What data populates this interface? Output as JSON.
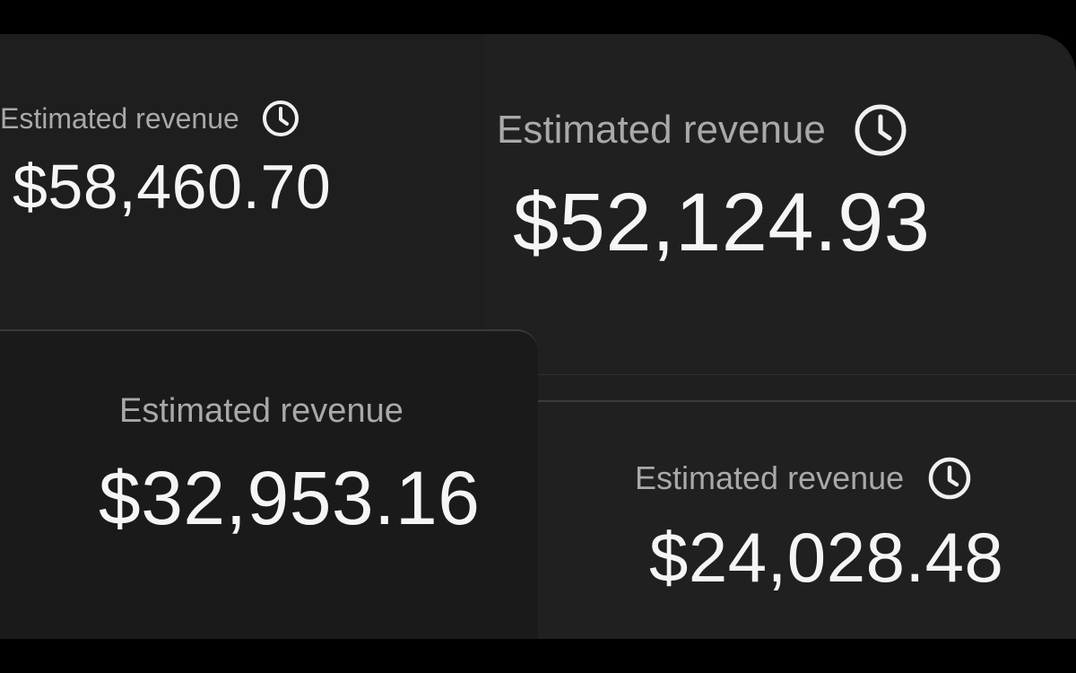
{
  "cards": [
    {
      "label": "Estimated revenue",
      "amount": "$58,460.70",
      "icon": "clock-icon"
    },
    {
      "label": "Estimated revenue",
      "amount": "$52,124.93",
      "icon": "clock-icon"
    },
    {
      "label": "Estimated revenue",
      "amount": "$32,953.16"
    },
    {
      "label": "Estimated revenue",
      "amount": "$24,028.48",
      "icon": "clock-icon"
    }
  ],
  "colors": {
    "background": "#000000",
    "card": "#1f1f1f",
    "label": "#a9a9a9",
    "amount": "#f5f5f5"
  }
}
